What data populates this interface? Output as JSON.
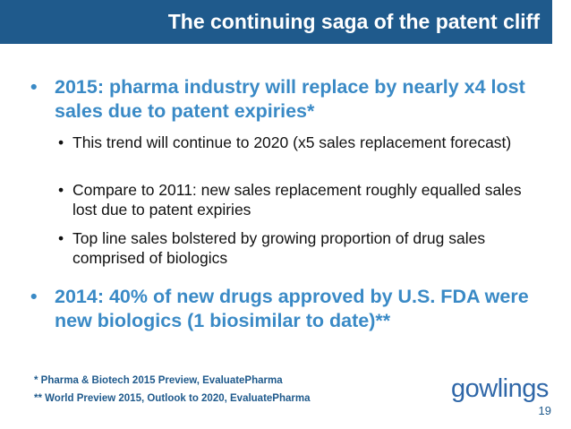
{
  "slide": {
    "title": "The continuing saga of the patent cliff",
    "bullets": [
      {
        "text": "2015: pharma industry will replace by nearly x4 lost sales due to patent expiries*",
        "sub": [
          "This trend will continue to 2020 (x5 sales replacement forecast)",
          "Compare to 2011: new sales replacement roughly equalled sales lost due to patent expiries",
          "Top line sales bolstered by growing proportion of drug sales comprised of biologics"
        ]
      },
      {
        "text": "2014: 40% of new drugs approved by U.S. FDA were new biologics (1 biosimilar to date)**"
      }
    ],
    "bullet_glyph": "•",
    "footnotes": [
      "*  Pharma & Biotech 2015 Preview, EvaluatePharma",
      "** World Preview 2015, Outlook to 2020, EvaluatePharma"
    ],
    "logo_text": "gowlings",
    "page_number": "19"
  },
  "colors": {
    "title_bar": "#1f5a8c",
    "accent_text": "#3a8ac6",
    "body_text": "#111111",
    "logo": "#2f67a8"
  }
}
